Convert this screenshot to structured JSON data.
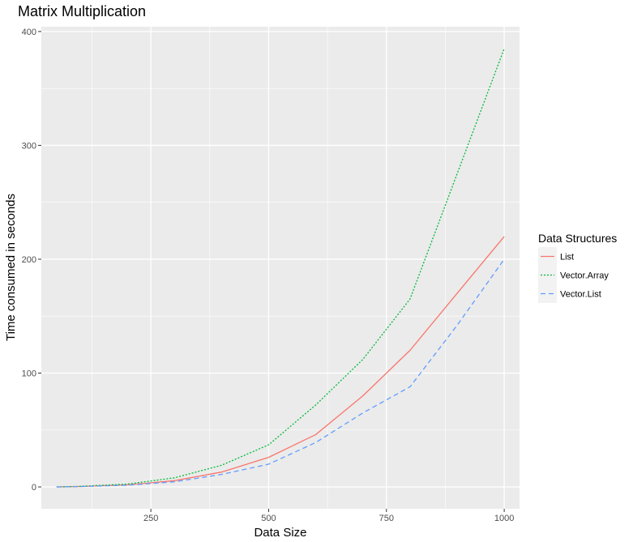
{
  "chart_data": {
    "type": "line",
    "title": "Matrix Multiplication",
    "xlabel": "Data Size",
    "ylabel": "Time consumed in seconds",
    "x": [
      50,
      100,
      200,
      300,
      400,
      500,
      600,
      700,
      800,
      900,
      1000
    ],
    "xlim": [
      17.5,
      1032.5
    ],
    "ylim": [
      -19.2,
      404.2
    ],
    "xticks": [
      250,
      500,
      750,
      1000
    ],
    "yticks": [
      0,
      100,
      200,
      300,
      400
    ],
    "grid": true,
    "legend": {
      "title": "Data Structures",
      "position": "right"
    },
    "series": [
      {
        "name": "List",
        "color": "#F8766D",
        "dash": "solid",
        "values": [
          0,
          0.4,
          1.8,
          5.5,
          13,
          26,
          46,
          80,
          120,
          170,
          220
        ]
      },
      {
        "name": "Vector.Array",
        "color": "#00BA38",
        "dash": "dotted",
        "values": [
          0,
          0.5,
          2.5,
          8,
          19,
          37,
          72,
          112,
          165,
          275,
          385
        ]
      },
      {
        "name": "Vector.List",
        "color": "#619CFF",
        "dash": "dashed",
        "values": [
          0,
          0.3,
          1.5,
          4.5,
          11,
          20,
          39,
          65,
          88,
          142,
          200
        ]
      }
    ]
  }
}
